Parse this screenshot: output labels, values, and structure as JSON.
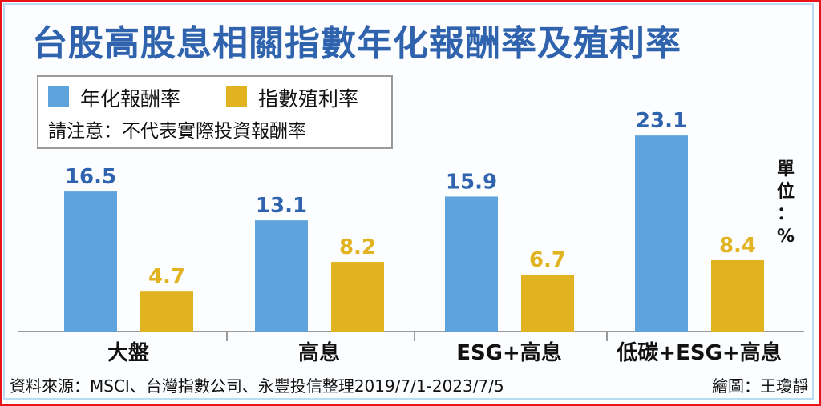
{
  "chart_data": {
    "type": "bar",
    "title": "台股高股息相關指數年化報酬率及殖利率",
    "categories": [
      "大盤",
      "高息",
      "ESG+高息",
      "低碳+ESG+高息"
    ],
    "series": [
      {
        "name": "年化報酬率",
        "color": "#5fa3dd",
        "values": [
          16.5,
          13.1,
          15.9,
          23.1
        ]
      },
      {
        "name": "指數殖利率",
        "color": "#e2b321",
        "values": [
          4.7,
          8.2,
          6.7,
          8.4
        ]
      }
    ],
    "value_labels": {
      "s0": [
        "16.5",
        "13.1",
        "15.9",
        "23.1"
      ],
      "s1": [
        "4.7",
        "8.2",
        "6.7",
        "8.4"
      ]
    },
    "value_label_colors": [
      "#2f63ad",
      "#e2b321"
    ],
    "ylim": [
      0,
      25
    ],
    "grid": false,
    "legend_position": "top-left",
    "note": "請注意：不代表實際投資報酬率",
    "unit": "單位：%",
    "unit_chars": [
      "單",
      "位",
      "：",
      "%"
    ],
    "source": "資料來源：MSCI、台灣指數公司、永豐投信整理2019/7/1-2023/7/5",
    "credit": "繪圖：王瓊靜"
  }
}
